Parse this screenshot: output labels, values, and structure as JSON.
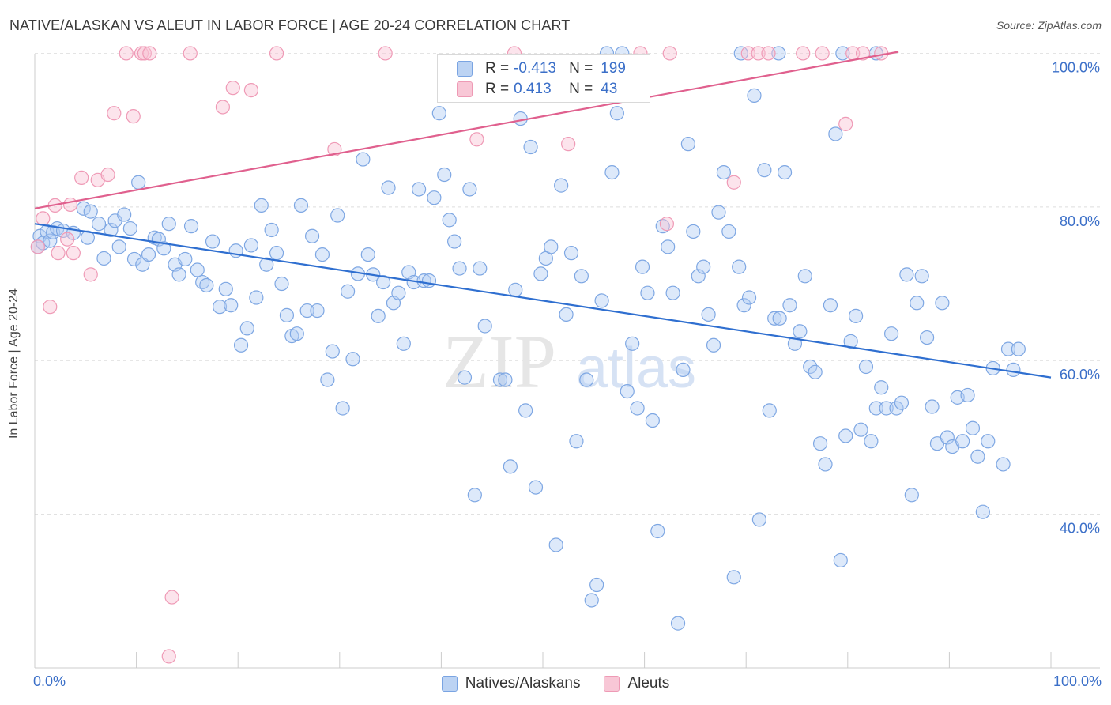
{
  "title": "NATIVE/ALASKAN VS ALEUT IN LABOR FORCE | AGE 20-24 CORRELATION CHART",
  "source": "Source: ZipAtlas.com",
  "watermark": {
    "zip": "ZIP",
    "atlas": "atlas"
  },
  "legend_stats": [
    {
      "r_label": "R =",
      "r_value": "-0.413",
      "n_label": "N =",
      "n_value": "199"
    },
    {
      "r_label": "R =",
      "r_value": "0.413",
      "n_label": "N =",
      "n_value": "43"
    }
  ],
  "chart_data": {
    "type": "scatter",
    "title": "NATIVE/ALASKAN VS ALEUT IN LABOR FORCE | AGE 20-24 CORRELATION CHART",
    "xlabel": "",
    "ylabel": "In Labor Force | Age 20-24",
    "xlim": [
      0,
      100
    ],
    "ylim": [
      20,
      102
    ],
    "x_tick_labels": [
      "0.0%",
      "100.0%"
    ],
    "y_ticks": [
      40,
      60,
      80,
      100
    ],
    "y_tick_labels": [
      "40.0%",
      "60.0%",
      "80.0%",
      "100.0%"
    ],
    "grid": true,
    "legend_position": "bottom",
    "colors": {
      "natives": "#4a86d8",
      "aleuts": "#e8789e",
      "natives_line": "#2f6fd0",
      "aleuts_line": "#e0608e"
    },
    "series": [
      {
        "name": "Natives/Alaskans",
        "trend": {
          "x": [
            0,
            100
          ],
          "y": [
            77.8,
            57.8
          ]
        },
        "points": [
          [
            0.3,
            74.8
          ],
          [
            0.5,
            76.2
          ],
          [
            0.8,
            75.3
          ],
          [
            1.2,
            76.8
          ],
          [
            1.5,
            75.6
          ],
          [
            1.8,
            76.7
          ],
          [
            2.2,
            77.2
          ],
          [
            2.8,
            76.9
          ],
          [
            3.8,
            76.6
          ],
          [
            4.8,
            79.8
          ],
          [
            5.5,
            79.4
          ],
          [
            5.2,
            76
          ],
          [
            6.3,
            77.8
          ],
          [
            6.8,
            73.3
          ],
          [
            7.5,
            77
          ],
          [
            7.9,
            78.2
          ],
          [
            8.3,
            74.8
          ],
          [
            8.8,
            79
          ],
          [
            9.4,
            77.2
          ],
          [
            9.8,
            73.2
          ],
          [
            10.2,
            83.2
          ],
          [
            10.6,
            72.5
          ],
          [
            11.2,
            73.8
          ],
          [
            11.8,
            76
          ],
          [
            12.2,
            75.8
          ],
          [
            12.7,
            74.6
          ],
          [
            13.2,
            77.8
          ],
          [
            13.8,
            72.5
          ],
          [
            14.2,
            71.2
          ],
          [
            14.8,
            73.2
          ],
          [
            15.4,
            77.5
          ],
          [
            16,
            71.8
          ],
          [
            16.5,
            70.2
          ],
          [
            16.9,
            69.8
          ],
          [
            17.5,
            75.5
          ],
          [
            18.2,
            67
          ],
          [
            18.8,
            69.3
          ],
          [
            19.3,
            67.2
          ],
          [
            19.8,
            74.3
          ],
          [
            20.3,
            62
          ],
          [
            20.9,
            64.2
          ],
          [
            21.3,
            75
          ],
          [
            21.8,
            68.2
          ],
          [
            22.3,
            80.2
          ],
          [
            22.8,
            72.5
          ],
          [
            23.3,
            77
          ],
          [
            23.8,
            74
          ],
          [
            24.3,
            70
          ],
          [
            24.8,
            65.9
          ],
          [
            25.3,
            63.2
          ],
          [
            25.8,
            63.5
          ],
          [
            26.2,
            80.2
          ],
          [
            26.8,
            66.5
          ],
          [
            27.3,
            76.2
          ],
          [
            27.8,
            66.5
          ],
          [
            28.3,
            73.8
          ],
          [
            28.8,
            57.5
          ],
          [
            29.3,
            61.2
          ],
          [
            29.8,
            78.9
          ],
          [
            30.3,
            53.8
          ],
          [
            30.8,
            69
          ],
          [
            31.3,
            60.2
          ],
          [
            31.8,
            71.3
          ],
          [
            32.3,
            86.2
          ],
          [
            32.8,
            73.8
          ],
          [
            33.3,
            71.2
          ],
          [
            33.8,
            65.8
          ],
          [
            34.3,
            70.2
          ],
          [
            34.8,
            82.5
          ],
          [
            35.3,
            67.5
          ],
          [
            35.8,
            68.8
          ],
          [
            36.3,
            62.2
          ],
          [
            36.8,
            71.5
          ],
          [
            37.3,
            70.2
          ],
          [
            37.8,
            82.3
          ],
          [
            38.3,
            70.4
          ],
          [
            38.8,
            70.4
          ],
          [
            39.3,
            81.2
          ],
          [
            39.8,
            92.2
          ],
          [
            40.3,
            84.2
          ],
          [
            40.8,
            78.3
          ],
          [
            41.3,
            75.5
          ],
          [
            41.8,
            72
          ],
          [
            42.3,
            57.8
          ],
          [
            42.8,
            82.3
          ],
          [
            43.3,
            42.5
          ],
          [
            43.8,
            72
          ],
          [
            44.3,
            64.5
          ],
          [
            44.8,
            94.5
          ],
          [
            45.3,
            95.8
          ],
          [
            45.8,
            57.5
          ],
          [
            46.3,
            57.5
          ],
          [
            46.8,
            46.2
          ],
          [
            47.3,
            69.2
          ],
          [
            47.8,
            91.5
          ],
          [
            48.3,
            53.5
          ],
          [
            48.8,
            87.8
          ],
          [
            49.3,
            43.5
          ],
          [
            49.8,
            71.3
          ],
          [
            50.3,
            73.3
          ],
          [
            50.8,
            74.8
          ],
          [
            51.3,
            36
          ],
          [
            51.8,
            82.8
          ],
          [
            52.3,
            66
          ],
          [
            52.8,
            74
          ],
          [
            53.3,
            49.5
          ],
          [
            53.8,
            71
          ],
          [
            54.3,
            57.5
          ],
          [
            54.8,
            28.8
          ],
          [
            55.3,
            30.8
          ],
          [
            55.8,
            67.8
          ],
          [
            56.3,
            100
          ],
          [
            56.8,
            84.5
          ],
          [
            57.3,
            92.2
          ],
          [
            57.8,
            100
          ],
          [
            58.3,
            56
          ],
          [
            58.8,
            62.2
          ],
          [
            59.3,
            53.8
          ],
          [
            59.8,
            72.2
          ],
          [
            60.3,
            68.8
          ],
          [
            60.8,
            52.2
          ],
          [
            61.3,
            37.8
          ],
          [
            61.8,
            77.5
          ],
          [
            62.3,
            74.8
          ],
          [
            62.8,
            68.8
          ],
          [
            63.3,
            25.8
          ],
          [
            63.8,
            58.8
          ],
          [
            64.3,
            88.2
          ],
          [
            64.8,
            76.8
          ],
          [
            65.3,
            71
          ],
          [
            65.8,
            72.2
          ],
          [
            66.3,
            66
          ],
          [
            66.8,
            62
          ],
          [
            67.3,
            79.3
          ],
          [
            67.8,
            84.5
          ],
          [
            68.3,
            76.8
          ],
          [
            68.8,
            31.8
          ],
          [
            69.3,
            72.2
          ],
          [
            69.8,
            67.2
          ],
          [
            70.3,
            68.2
          ],
          [
            70.8,
            94.5
          ],
          [
            71.3,
            39.3
          ],
          [
            71.8,
            84.8
          ],
          [
            72.3,
            53.5
          ],
          [
            72.8,
            65.5
          ],
          [
            73.3,
            65.5
          ],
          [
            73.8,
            84.5
          ],
          [
            74.3,
            67.2
          ],
          [
            74.8,
            62.2
          ],
          [
            75.3,
            63.8
          ],
          [
            75.8,
            71
          ],
          [
            76.3,
            59.2
          ],
          [
            76.8,
            58.5
          ],
          [
            77.3,
            49.2
          ],
          [
            77.8,
            46.5
          ],
          [
            78.3,
            67.2
          ],
          [
            78.8,
            89.5
          ],
          [
            79.3,
            34
          ],
          [
            79.8,
            50.2
          ],
          [
            80.3,
            62.5
          ],
          [
            80.8,
            65.8
          ],
          [
            81.3,
            51
          ],
          [
            81.8,
            59.2
          ],
          [
            82.3,
            49.5
          ],
          [
            82.8,
            53.8
          ],
          [
            83.3,
            56.5
          ],
          [
            83.8,
            53.8
          ],
          [
            84.3,
            63.5
          ],
          [
            84.8,
            53.8
          ],
          [
            85.3,
            54.5
          ],
          [
            85.8,
            71.2
          ],
          [
            86.3,
            42.5
          ],
          [
            86.8,
            67.5
          ],
          [
            87.3,
            71
          ],
          [
            87.8,
            63
          ],
          [
            88.3,
            54
          ],
          [
            88.8,
            49.2
          ],
          [
            89.3,
            67.5
          ],
          [
            89.8,
            50
          ],
          [
            90.3,
            48.8
          ],
          [
            90.8,
            55.2
          ],
          [
            91.3,
            49.5
          ],
          [
            91.8,
            55.5
          ],
          [
            92.3,
            51.2
          ],
          [
            92.8,
            47.5
          ],
          [
            93.3,
            40.3
          ],
          [
            93.8,
            49.5
          ],
          [
            94.3,
            59
          ],
          [
            95.3,
            46.5
          ],
          [
            95.8,
            61.5
          ],
          [
            96.3,
            58.8
          ],
          [
            96.8,
            61.5
          ],
          [
            69.5,
            100
          ],
          [
            73.2,
            100
          ],
          [
            79.5,
            100
          ],
          [
            82.8,
            100
          ]
        ]
      },
      {
        "name": "Aleuts",
        "trend": {
          "x": [
            0,
            85
          ],
          "y": [
            79.8,
            100.2
          ]
        },
        "points": [
          [
            0.3,
            74.8
          ],
          [
            0.8,
            78.5
          ],
          [
            1.5,
            67
          ],
          [
            2,
            80.2
          ],
          [
            2.3,
            74
          ],
          [
            3.2,
            75.8
          ],
          [
            3.5,
            80.3
          ],
          [
            3.8,
            74
          ],
          [
            4.6,
            83.8
          ],
          [
            5.5,
            71.2
          ],
          [
            6.2,
            83.5
          ],
          [
            7.2,
            84.2
          ],
          [
            7.8,
            92.2
          ],
          [
            9,
            100
          ],
          [
            9.7,
            91.8
          ],
          [
            10.5,
            100
          ],
          [
            10.8,
            100
          ],
          [
            11.3,
            100
          ],
          [
            13.5,
            29.2
          ],
          [
            13.2,
            21.5
          ],
          [
            15.3,
            100
          ],
          [
            18.5,
            93
          ],
          [
            19.5,
            95.5
          ],
          [
            21.3,
            95.2
          ],
          [
            23.8,
            100
          ],
          [
            29.5,
            87.5
          ],
          [
            34.5,
            100
          ],
          [
            43.5,
            88.8
          ],
          [
            47.2,
            100
          ],
          [
            52.5,
            88.2
          ],
          [
            59.6,
            100
          ],
          [
            62.2,
            77.8
          ],
          [
            62.5,
            100
          ],
          [
            68.8,
            83.2
          ],
          [
            70.2,
            100
          ],
          [
            71.2,
            100
          ],
          [
            72.2,
            100
          ],
          [
            75.6,
            100
          ],
          [
            77.5,
            100
          ],
          [
            79.8,
            90.8
          ],
          [
            80.5,
            100
          ],
          [
            81.5,
            100
          ],
          [
            83.3,
            100
          ]
        ]
      }
    ]
  }
}
